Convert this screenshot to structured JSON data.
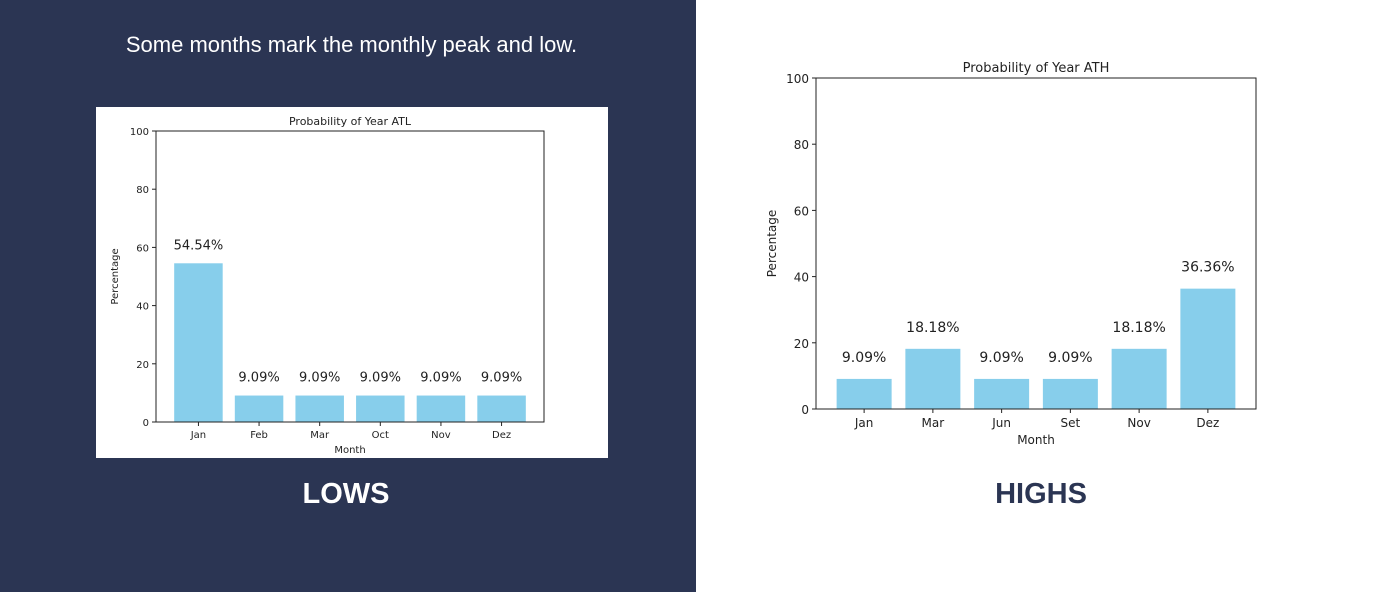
{
  "headline": "Some months mark the monthly peak and low.",
  "labels": {
    "lows": "LOWS",
    "highs": "HIGHS"
  },
  "colors": {
    "panel_bg": "#2b3553",
    "bar": "#87ceeb"
  },
  "chart_data": [
    {
      "type": "bar",
      "title": "Probability of Year ATL",
      "xlabel": "Month",
      "ylabel": "Percentage",
      "categories": [
        "Jan",
        "Feb",
        "Mar",
        "Oct",
        "Nov",
        "Dez"
      ],
      "values": [
        54.54,
        9.09,
        9.09,
        9.09,
        9.09,
        9.09
      ],
      "data_labels": [
        "54.54%",
        "9.09%",
        "9.09%",
        "9.09%",
        "9.09%",
        "9.09%"
      ],
      "ylim": [
        0,
        100
      ],
      "yticks": [
        0,
        20,
        40,
        60,
        80,
        100
      ],
      "grid": false
    },
    {
      "type": "bar",
      "title": "Probability of Year ATH",
      "xlabel": "Month",
      "ylabel": "Percentage",
      "categories": [
        "Jan",
        "Mar",
        "Jun",
        "Set",
        "Nov",
        "Dez"
      ],
      "values": [
        9.09,
        18.18,
        9.09,
        9.09,
        18.18,
        36.36
      ],
      "data_labels": [
        "9.09%",
        "18.18%",
        "9.09%",
        "9.09%",
        "18.18%",
        "36.36%"
      ],
      "ylim": [
        0,
        100
      ],
      "yticks": [
        0,
        20,
        40,
        60,
        80,
        100
      ],
      "grid": false
    }
  ]
}
